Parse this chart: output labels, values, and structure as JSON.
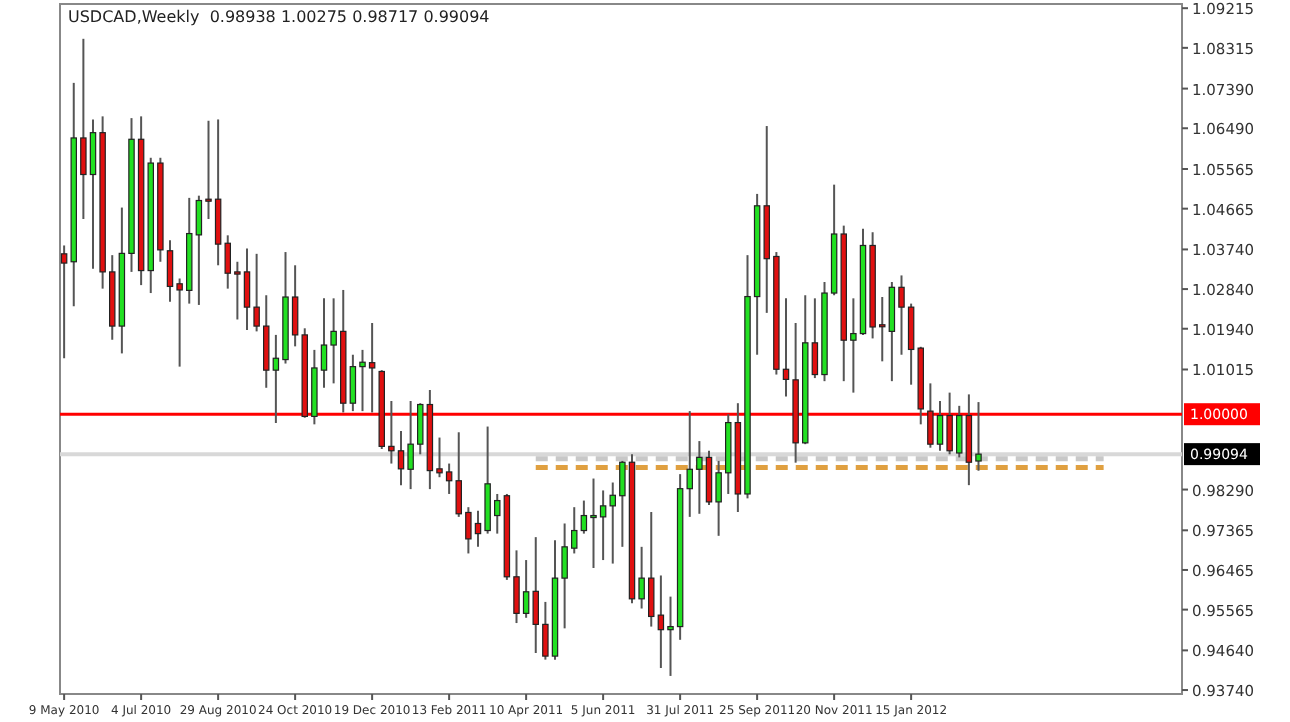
{
  "chart_data": {
    "type": "candlestick",
    "title": "USDCAD,Weekly  0.98938 1.00275 0.98717 0.99094",
    "x": [
      "2010-05-09",
      "2010-05-16",
      "2010-05-23",
      "2010-05-30",
      "2010-06-06",
      "2010-06-13",
      "2010-06-20",
      "2010-06-27",
      "2010-07-04",
      "2010-07-11",
      "2010-07-18",
      "2010-07-25",
      "2010-08-01",
      "2010-08-08",
      "2010-08-15",
      "2010-08-22",
      "2010-08-29",
      "2010-09-05",
      "2010-09-12",
      "2010-09-19",
      "2010-09-26",
      "2010-10-03",
      "2010-10-10",
      "2010-10-17",
      "2010-10-24",
      "2010-10-31",
      "2010-11-07",
      "2010-11-14",
      "2010-11-21",
      "2010-11-28",
      "2010-12-05",
      "2010-12-12",
      "2010-12-19",
      "2010-12-26",
      "2011-01-02",
      "2011-01-09",
      "2011-01-16",
      "2011-01-23",
      "2011-01-30",
      "2011-02-06",
      "2011-02-13",
      "2011-02-20",
      "2011-02-27",
      "2011-03-06",
      "2011-03-13",
      "2011-03-20",
      "2011-03-27",
      "2011-04-03",
      "2011-04-10",
      "2011-04-17",
      "2011-04-24",
      "2011-05-01",
      "2011-05-08",
      "2011-05-15",
      "2011-05-22",
      "2011-05-29",
      "2011-06-05",
      "2011-06-12",
      "2011-06-19",
      "2011-06-26",
      "2011-07-03",
      "2011-07-10",
      "2011-07-17",
      "2011-07-24",
      "2011-07-31",
      "2011-08-07",
      "2011-08-14",
      "2011-08-21",
      "2011-08-28",
      "2011-09-04",
      "2011-09-11",
      "2011-09-18",
      "2011-09-25",
      "2011-10-02",
      "2011-10-09",
      "2011-10-16",
      "2011-10-23",
      "2011-10-30",
      "2011-11-06",
      "2011-11-13",
      "2011-11-20",
      "2011-11-27",
      "2011-12-04",
      "2011-12-11",
      "2011-12-18",
      "2011-12-25",
      "2012-01-01",
      "2012-01-08",
      "2012-01-15",
      "2012-01-22",
      "2012-01-29",
      "2012-02-05",
      "2012-02-12",
      "2012-02-19",
      "2012-02-26",
      "2012-03-04"
    ],
    "ohlc": [
      [
        1.0364,
        1.0383,
        1.0127,
        1.0343
      ],
      [
        1.0346,
        1.0752,
        1.0245,
        1.0627
      ],
      [
        1.0627,
        1.0852,
        1.0443,
        1.0544
      ],
      [
        1.0544,
        1.0669,
        1.033,
        1.0639
      ],
      [
        1.0639,
        1.0676,
        1.0285,
        1.0323
      ],
      [
        1.0323,
        1.0361,
        1.0169,
        1.02
      ],
      [
        1.02,
        1.0469,
        1.0138,
        1.0365
      ],
      [
        1.0365,
        1.0672,
        1.0323,
        1.0624
      ],
      [
        1.0624,
        1.0676,
        1.0293,
        1.0326
      ],
      [
        1.0326,
        1.0582,
        1.0275,
        1.057
      ],
      [
        1.057,
        1.0582,
        1.0346,
        1.0373
      ],
      [
        1.0371,
        1.0395,
        1.0255,
        1.029
      ],
      [
        1.0296,
        1.0308,
        1.0108,
        1.0282
      ],
      [
        1.0281,
        1.0491,
        1.0251,
        1.041
      ],
      [
        1.0407,
        1.0496,
        1.0248,
        1.0485
      ],
      [
        1.0488,
        1.0666,
        1.0443,
        1.0485
      ],
      [
        1.0488,
        1.0669,
        1.0338,
        1.0386
      ],
      [
        1.0388,
        1.0406,
        1.0285,
        1.032
      ],
      [
        1.0323,
        1.0346,
        1.0215,
        1.0318
      ],
      [
        1.0323,
        1.0376,
        1.0191,
        1.0243
      ],
      [
        1.0243,
        1.0364,
        1.0188,
        1.02
      ],
      [
        1.02,
        1.027,
        1.006,
        1.01
      ],
      [
        1.01,
        1.018,
        0.998,
        1.0127
      ],
      [
        1.0124,
        1.0368,
        1.0115,
        1.0266
      ],
      [
        1.0266,
        1.0338,
        1.0154,
        1.018
      ],
      [
        1.018,
        1.0195,
        0.9992,
        0.9995
      ],
      [
        0.9995,
        1.0146,
        0.9977,
        1.0105
      ],
      [
        1.01,
        1.0263,
        1.006,
        1.0157
      ],
      [
        1.0157,
        1.0263,
        1.007,
        1.0188
      ],
      [
        1.0188,
        1.0282,
        1.0004,
        1.0025
      ],
      [
        1.0025,
        1.0135,
        1.0007,
        1.0108
      ],
      [
        1.0108,
        1.0146,
        1.0007,
        1.0118
      ],
      [
        1.0117,
        1.0207,
        1.0004,
        1.0105
      ],
      [
        1.0097,
        1.01,
        0.9921,
        0.9927
      ],
      [
        0.9927,
        1.003,
        0.9888,
        0.9917
      ],
      [
        0.9917,
        0.9962,
        0.9839,
        0.9876
      ],
      [
        0.9875,
        1.003,
        0.983,
        0.9932
      ],
      [
        0.9932,
        1.0025,
        0.9909,
        1.0022
      ],
      [
        1.0022,
        1.0055,
        0.983,
        0.9872
      ],
      [
        0.9876,
        0.9947,
        0.9857,
        0.9867
      ],
      [
        0.9869,
        0.9888,
        0.9819,
        0.9849
      ],
      [
        0.9849,
        0.9959,
        0.9767,
        0.9774
      ],
      [
        0.9777,
        0.9789,
        0.9684,
        0.9717
      ],
      [
        0.9752,
        0.9781,
        0.9699,
        0.9729
      ],
      [
        0.9736,
        0.9972,
        0.9729,
        0.9842
      ],
      [
        0.977,
        0.9819,
        0.9729,
        0.9804
      ],
      [
        0.9815,
        0.9819,
        0.9624,
        0.9631
      ],
      [
        0.9631,
        0.9691,
        0.9526,
        0.9548
      ],
      [
        0.9548,
        0.9669,
        0.9538,
        0.9597
      ],
      [
        0.9598,
        0.9721,
        0.9458,
        0.9523
      ],
      [
        0.9523,
        0.9574,
        0.9443,
        0.9451
      ],
      [
        0.9451,
        0.9714,
        0.9443,
        0.9628
      ],
      [
        0.9628,
        0.9752,
        0.9514,
        0.9699
      ],
      [
        0.9696,
        0.9789,
        0.9684,
        0.9736
      ],
      [
        0.9736,
        0.9804,
        0.9729,
        0.977
      ],
      [
        0.9767,
        0.9854,
        0.9651,
        0.977
      ],
      [
        0.9767,
        0.9827,
        0.9669,
        0.9792
      ],
      [
        0.9792,
        0.9845,
        0.9661,
        0.9816
      ],
      [
        0.9815,
        0.9894,
        0.9699,
        0.9891
      ],
      [
        0.9891,
        0.9909,
        0.9571,
        0.9581
      ],
      [
        0.9581,
        0.9699,
        0.9559,
        0.9628
      ],
      [
        0.9628,
        0.9778,
        0.9518,
        0.9541
      ],
      [
        0.9544,
        0.9634,
        0.9424,
        0.9511
      ],
      [
        0.9511,
        0.9586,
        0.9406,
        0.9518
      ],
      [
        0.9518,
        0.9864,
        0.9488,
        0.9831
      ],
      [
        0.9831,
        1.0007,
        0.9767,
        0.9875
      ],
      [
        0.9875,
        0.9939,
        0.9774,
        0.9902
      ],
      [
        0.9902,
        0.9917,
        0.9794,
        0.9801
      ],
      [
        0.9801,
        0.9894,
        0.9724,
        0.9867
      ],
      [
        0.9867,
        1.0,
        0.9819,
        0.9981
      ],
      [
        0.9981,
        1.0025,
        0.9778,
        0.9819
      ],
      [
        0.9819,
        1.0361,
        0.9809,
        1.0267
      ],
      [
        1.0267,
        1.05,
        1.0135,
        1.0473
      ],
      [
        1.0473,
        1.0654,
        1.023,
        1.0353
      ],
      [
        1.0358,
        1.0368,
        1.009,
        1.0102
      ],
      [
        1.0102,
        1.0263,
        1.004,
        1.0079
      ],
      [
        1.0078,
        1.0207,
        0.989,
        0.9935
      ],
      [
        0.9935,
        1.027,
        0.9932,
        1.0162
      ],
      [
        1.0162,
        1.0263,
        1.0082,
        1.009
      ],
      [
        1.009,
        1.03,
        1.0075,
        1.0275
      ],
      [
        1.0275,
        1.0521,
        1.027,
        1.0409
      ],
      [
        1.0409,
        1.0428,
        1.0075,
        1.0168
      ],
      [
        1.0168,
        1.0263,
        1.0049,
        1.0183
      ],
      [
        1.0183,
        1.0421,
        1.018,
        1.0383
      ],
      [
        1.0383,
        1.0413,
        1.0172,
        1.0198
      ],
      [
        1.0203,
        1.0266,
        1.012,
        1.02
      ],
      [
        1.0188,
        1.03,
        1.0075,
        1.0288
      ],
      [
        1.0288,
        1.0315,
        1.0135,
        1.0243
      ],
      [
        1.0243,
        1.0251,
        1.0067,
        1.0147
      ],
      [
        1.015,
        1.0153,
        0.9977,
        1.0012
      ],
      [
        1.0007,
        1.007,
        0.9924,
        0.9932
      ],
      [
        0.9932,
        1.003,
        0.9917,
        0.9997
      ],
      [
        0.9997,
        1.0049,
        0.9909,
        0.9917
      ],
      [
        0.9912,
        1.0019,
        0.9902,
        0.9997
      ],
      [
        0.9997,
        1.0045,
        0.9839,
        0.9891
      ],
      [
        0.98938,
        1.00275,
        0.98717,
        0.99094
      ]
    ],
    "series": [
      {
        "type": "line",
        "x": [
          "2011-04-17",
          "2012-06-03"
        ],
        "values": [
          0.9899,
          0.9899
        ],
        "color": "#c8c8c8",
        "line_style": "dashed"
      },
      {
        "type": "line",
        "x": [
          "2011-04-17",
          "2012-06-03"
        ],
        "values": [
          0.9879,
          0.9879
        ],
        "color": "#e0a040",
        "line_style": "dashed"
      }
    ],
    "xlim": [
      "2010-05-06",
      "2012-07-30"
    ],
    "xticks": [
      {
        "value": "2010-05-09",
        "label": "9 May 2010"
      },
      {
        "value": "2010-07-04",
        "label": "4 Jul 2010"
      },
      {
        "value": "2010-08-29",
        "label": "29 Aug 2010"
      },
      {
        "value": "2010-10-24",
        "label": "24 Oct 2010"
      },
      {
        "value": "2010-12-19",
        "label": "19 Dec 2010"
      },
      {
        "value": "2011-02-13",
        "label": "13 Feb 2011"
      },
      {
        "value": "2011-04-10",
        "label": "10 Apr 2011"
      },
      {
        "value": "2011-06-05",
        "label": "5 Jun 2011"
      },
      {
        "value": "2011-07-31",
        "label": "31 Jul 2011"
      },
      {
        "value": "2011-09-25",
        "label": "25 Sep 2011"
      },
      {
        "value": "2011-11-20",
        "label": "20 Nov 2011"
      },
      {
        "value": "2012-01-15",
        "label": "15 Jan 2012"
      }
    ],
    "ylim": [
      0.9365,
      1.0931
    ],
    "yticks": [
      {
        "value": 0.9374,
        "label": "0.93740"
      },
      {
        "value": 0.9464,
        "label": "0.94640"
      },
      {
        "value": 0.95565,
        "label": "0.95565"
      },
      {
        "value": 0.96465,
        "label": "0.96465"
      },
      {
        "value": 0.97365,
        "label": "0.97365"
      },
      {
        "value": 0.9829,
        "label": "0.98290"
      },
      {
        "value": 1.01015,
        "label": "1.01015"
      },
      {
        "value": 1.0194,
        "label": "1.01940"
      },
      {
        "value": 1.0284,
        "label": "1.02840"
      },
      {
        "value": 1.0374,
        "label": "1.03740"
      },
      {
        "value": 1.04665,
        "label": "1.04665"
      },
      {
        "value": 1.05565,
        "label": "1.05565"
      },
      {
        "value": 1.0649,
        "label": "1.06490"
      },
      {
        "value": 1.0739,
        "label": "1.07390"
      },
      {
        "value": 1.08315,
        "label": "1.08315"
      },
      {
        "value": 1.09215,
        "label": "1.09215"
      }
    ],
    "ref_lines": [
      {
        "axis": "y",
        "value": 0.99094,
        "label": "0.99094",
        "color": "#d8d8d8"
      },
      {
        "axis": "y",
        "value": 1.0,
        "label": "1.00000",
        "color": "#ff0000"
      }
    ]
  }
}
